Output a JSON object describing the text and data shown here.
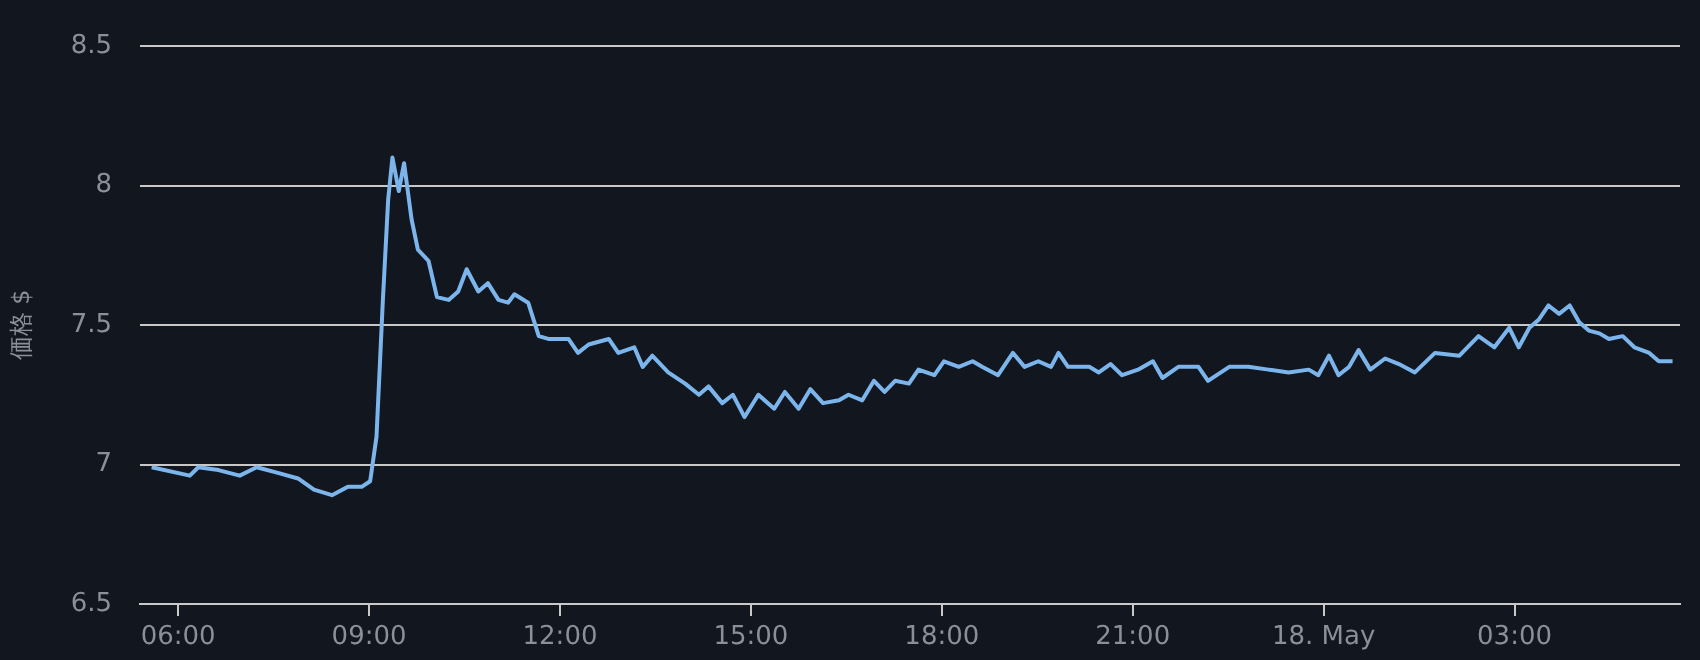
{
  "chart_data": {
    "type": "line",
    "ylabel": "価格 $",
    "xlim": [
      "--05-17T05:24",
      "--05-18T05:36"
    ],
    "xticks": [
      {
        "value": "--05-17T06:00",
        "label": "06:00"
      },
      {
        "value": "--05-17T09:00",
        "label": "09:00"
      },
      {
        "value": "--05-17T12:00",
        "label": "12:00"
      },
      {
        "value": "--05-17T15:00",
        "label": "15:00"
      },
      {
        "value": "--05-17T18:00",
        "label": "18:00"
      },
      {
        "value": "--05-17T21:00",
        "label": "21:00"
      },
      {
        "value": "--05-18T00:00",
        "label": "18. May"
      },
      {
        "value": "--05-18T03:00",
        "label": "03:00"
      }
    ],
    "ylim": [
      6.5,
      8.5
    ],
    "yticks": [
      6.5,
      7,
      7.5,
      8,
      8.5
    ],
    "grid": "y",
    "marker": "none",
    "x": [
      "--05-17T05:35",
      "--05-17T06:11",
      "--05-17T06:19",
      "--05-17T06:38",
      "--05-17T06:58",
      "--05-17T07:14",
      "--05-17T07:34",
      "--05-17T07:53",
      "--05-17T08:08",
      "--05-17T08:25",
      "--05-17T08:40",
      "--05-17T08:53",
      "--05-17T09:01",
      "--05-17T09:07",
      "--05-17T09:13",
      "--05-17T09:18",
      "--05-17T09:22",
      "--05-17T09:28",
      "--05-17T09:33",
      "--05-17T09:40",
      "--05-17T09:46",
      "--05-17T09:56",
      "--05-17T10:04",
      "--05-17T10:15",
      "--05-17T10:24",
      "--05-17T10:32",
      "--05-17T10:43",
      "--05-17T10:52",
      "--05-17T11:02",
      "--05-17T11:11",
      "--05-17T11:17",
      "--05-17T11:30",
      "--05-17T11:40",
      "--05-17T11:49",
      "--05-17T12:08",
      "--05-17T12:17",
      "--05-17T12:27",
      "--05-17T12:46",
      "--05-17T12:55",
      "--05-17T13:10",
      "--05-17T13:18",
      "--05-17T13:27",
      "--05-17T13:42",
      "--05-17T13:58",
      "--05-17T14:11",
      "--05-17T14:20",
      "--05-17T14:33",
      "--05-17T14:43",
      "--05-17T14:54",
      "--05-17T15:07",
      "--05-17T15:22",
      "--05-17T15:32",
      "--05-17T15:45",
      "--05-17T15:56",
      "--05-17T16:08",
      "--05-17T16:23",
      "--05-17T16:32",
      "--05-17T16:45",
      "--05-17T16:56",
      "--05-17T17:06",
      "--05-17T17:16",
      "--05-17T17:29",
      "--05-17T17:38",
      "--05-17T17:53",
      "--05-17T18:02",
      "--05-17T18:16",
      "--05-17T18:29",
      "--05-17T18:38",
      "--05-17T18:53",
      "--05-17T19:07",
      "--05-17T19:18",
      "--05-17T19:31",
      "--05-17T19:43",
      "--05-17T19:50",
      "--05-17T19:59",
      "--05-17T20:19",
      "--05-17T20:28",
      "--05-17T20:39",
      "--05-17T20:50",
      "--05-17T21:05",
      "--05-17T21:19",
      "--05-17T21:28",
      "--05-17T21:43",
      "--05-17T22:02",
      "--05-17T22:11",
      "--05-17T22:31",
      "--05-17T22:49",
      "--05-17T23:08",
      "--05-17T23:27",
      "--05-17T23:46",
      "--05-17T23:55",
      "--05-18T00:05",
      "--05-18T00:14",
      "--05-18T00:24",
      "--05-18T00:33",
      "--05-18T00:44",
      "--05-18T00:58",
      "--05-18T01:11",
      "--05-18T01:26",
      "--05-18T01:45",
      "--05-18T02:08",
      "--05-18T02:26",
      "--05-18T02:41",
      "--05-18T02:55",
      "--05-18T03:04",
      "--05-18T03:14",
      "--05-18T03:23",
      "--05-18T03:32",
      "--05-18T03:42",
      "--05-18T03:52",
      "--05-18T04:01",
      "--05-18T04:10",
      "--05-18T04:20",
      "--05-18T04:29",
      "--05-18T04:42",
      "--05-18T04:53",
      "--05-18T05:07",
      "--05-18T05:16",
      "--05-18T05:29"
    ],
    "series": [
      {
        "color": "#7cb5ec",
        "values": [
          6.99,
          6.96,
          6.99,
          6.98,
          6.96,
          6.99,
          6.97,
          6.95,
          6.91,
          6.89,
          6.92,
          6.92,
          6.94,
          7.1,
          7.59,
          7.95,
          8.1,
          7.98,
          8.08,
          7.88,
          7.77,
          7.73,
          7.6,
          7.59,
          7.62,
          7.7,
          7.62,
          7.65,
          7.59,
          7.58,
          7.61,
          7.58,
          7.46,
          7.45,
          7.45,
          7.4,
          7.43,
          7.45,
          7.4,
          7.42,
          7.35,
          7.39,
          7.33,
          7.29,
          7.25,
          7.28,
          7.22,
          7.25,
          7.17,
          7.25,
          7.2,
          7.26,
          7.2,
          7.27,
          7.22,
          7.23,
          7.25,
          7.23,
          7.3,
          7.26,
          7.3,
          7.29,
          7.34,
          7.32,
          7.37,
          7.35,
          7.37,
          7.35,
          7.32,
          7.4,
          7.35,
          7.37,
          7.35,
          7.4,
          7.35,
          7.35,
          7.33,
          7.36,
          7.32,
          7.34,
          7.37,
          7.31,
          7.35,
          7.35,
          7.3,
          7.35,
          7.35,
          7.34,
          7.33,
          7.34,
          7.32,
          7.39,
          7.32,
          7.35,
          7.41,
          7.34,
          7.38,
          7.36,
          7.33,
          7.4,
          7.39,
          7.46,
          7.42,
          7.49,
          7.42,
          7.49,
          7.52,
          7.57,
          7.54,
          7.57,
          7.51,
          7.48,
          7.47,
          7.45,
          7.46,
          7.42,
          7.4,
          7.37,
          7.37
        ]
      }
    ]
  }
}
